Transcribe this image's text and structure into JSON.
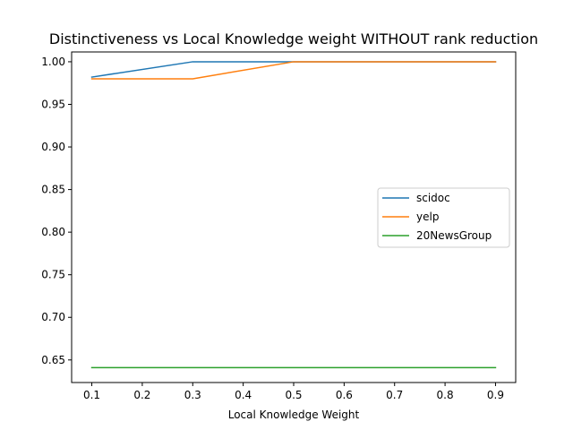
{
  "chart_data": {
    "type": "line",
    "title": "Distinctiveness vs Local Knowledge weight WITHOUT rank reduction",
    "xlabel": "Local Knowledge Weight",
    "ylabel": "",
    "x": [
      0.1,
      0.3,
      0.5,
      0.7,
      0.9
    ],
    "xlim": [
      0.06,
      0.94
    ],
    "ylim": [
      0.6235,
      1.0115
    ],
    "xticks": [
      "0.1",
      "0.2",
      "0.3",
      "0.4",
      "0.5",
      "0.6",
      "0.7",
      "0.8",
      "0.9"
    ],
    "yticks": [
      "0.65",
      "0.70",
      "0.75",
      "0.80",
      "0.85",
      "0.90",
      "0.95",
      "1.00"
    ],
    "grid": false,
    "legend_position": "center-right",
    "series": [
      {
        "name": "scidoc",
        "color": "#1f77b4",
        "values": [
          0.982,
          1.0,
          1.0,
          1.0,
          1.0
        ]
      },
      {
        "name": "yelp",
        "color": "#ff7f0e",
        "values": [
          0.98,
          0.98,
          1.0,
          1.0,
          1.0
        ]
      },
      {
        "name": "20NewsGroup",
        "color": "#2ca02c",
        "values": [
          0.641,
          0.641,
          0.641,
          0.641,
          0.641
        ]
      }
    ]
  }
}
